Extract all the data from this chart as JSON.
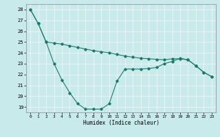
{
  "xlabel": "Humidex (Indice chaleur)",
  "background_color": "#c8eaea",
  "grid_color": "#f5f5f5",
  "line_color": "#1a7a6a",
  "x_ticks": [
    0,
    1,
    2,
    3,
    4,
    5,
    6,
    7,
    8,
    9,
    10,
    11,
    12,
    13,
    14,
    15,
    16,
    17,
    18,
    19,
    20,
    21,
    22,
    23
  ],
  "ylim": [
    18.5,
    28.5
  ],
  "xlim": [
    -0.5,
    23.5
  ],
  "yticks": [
    19,
    20,
    21,
    22,
    23,
    24,
    25,
    26,
    27,
    28
  ],
  "line1_x": [
    0,
    1,
    2,
    3,
    4,
    5,
    6,
    7,
    8,
    9,
    10,
    11,
    12,
    13,
    14,
    15,
    16,
    17,
    18,
    19,
    20,
    21,
    22,
    23
  ],
  "line1_y": [
    28.0,
    26.7,
    25.0,
    24.9,
    24.8,
    24.65,
    24.5,
    24.35,
    24.2,
    24.1,
    24.0,
    23.85,
    23.7,
    23.6,
    23.5,
    23.45,
    23.4,
    23.35,
    23.45,
    23.45,
    23.35,
    22.8,
    22.2,
    21.8
  ],
  "line2_x": [
    0,
    1,
    2,
    3,
    4,
    5,
    6,
    7,
    8,
    9,
    10,
    11,
    12,
    13,
    14,
    15,
    16,
    17,
    18,
    19,
    20,
    21,
    22,
    23
  ],
  "line2_y": [
    28.0,
    26.7,
    25.0,
    23.0,
    21.5,
    20.3,
    19.3,
    18.8,
    18.8,
    18.8,
    19.3,
    21.4,
    22.5,
    22.5,
    22.5,
    22.55,
    22.65,
    23.0,
    23.2,
    23.5,
    23.35,
    22.8,
    22.2,
    21.8
  ]
}
